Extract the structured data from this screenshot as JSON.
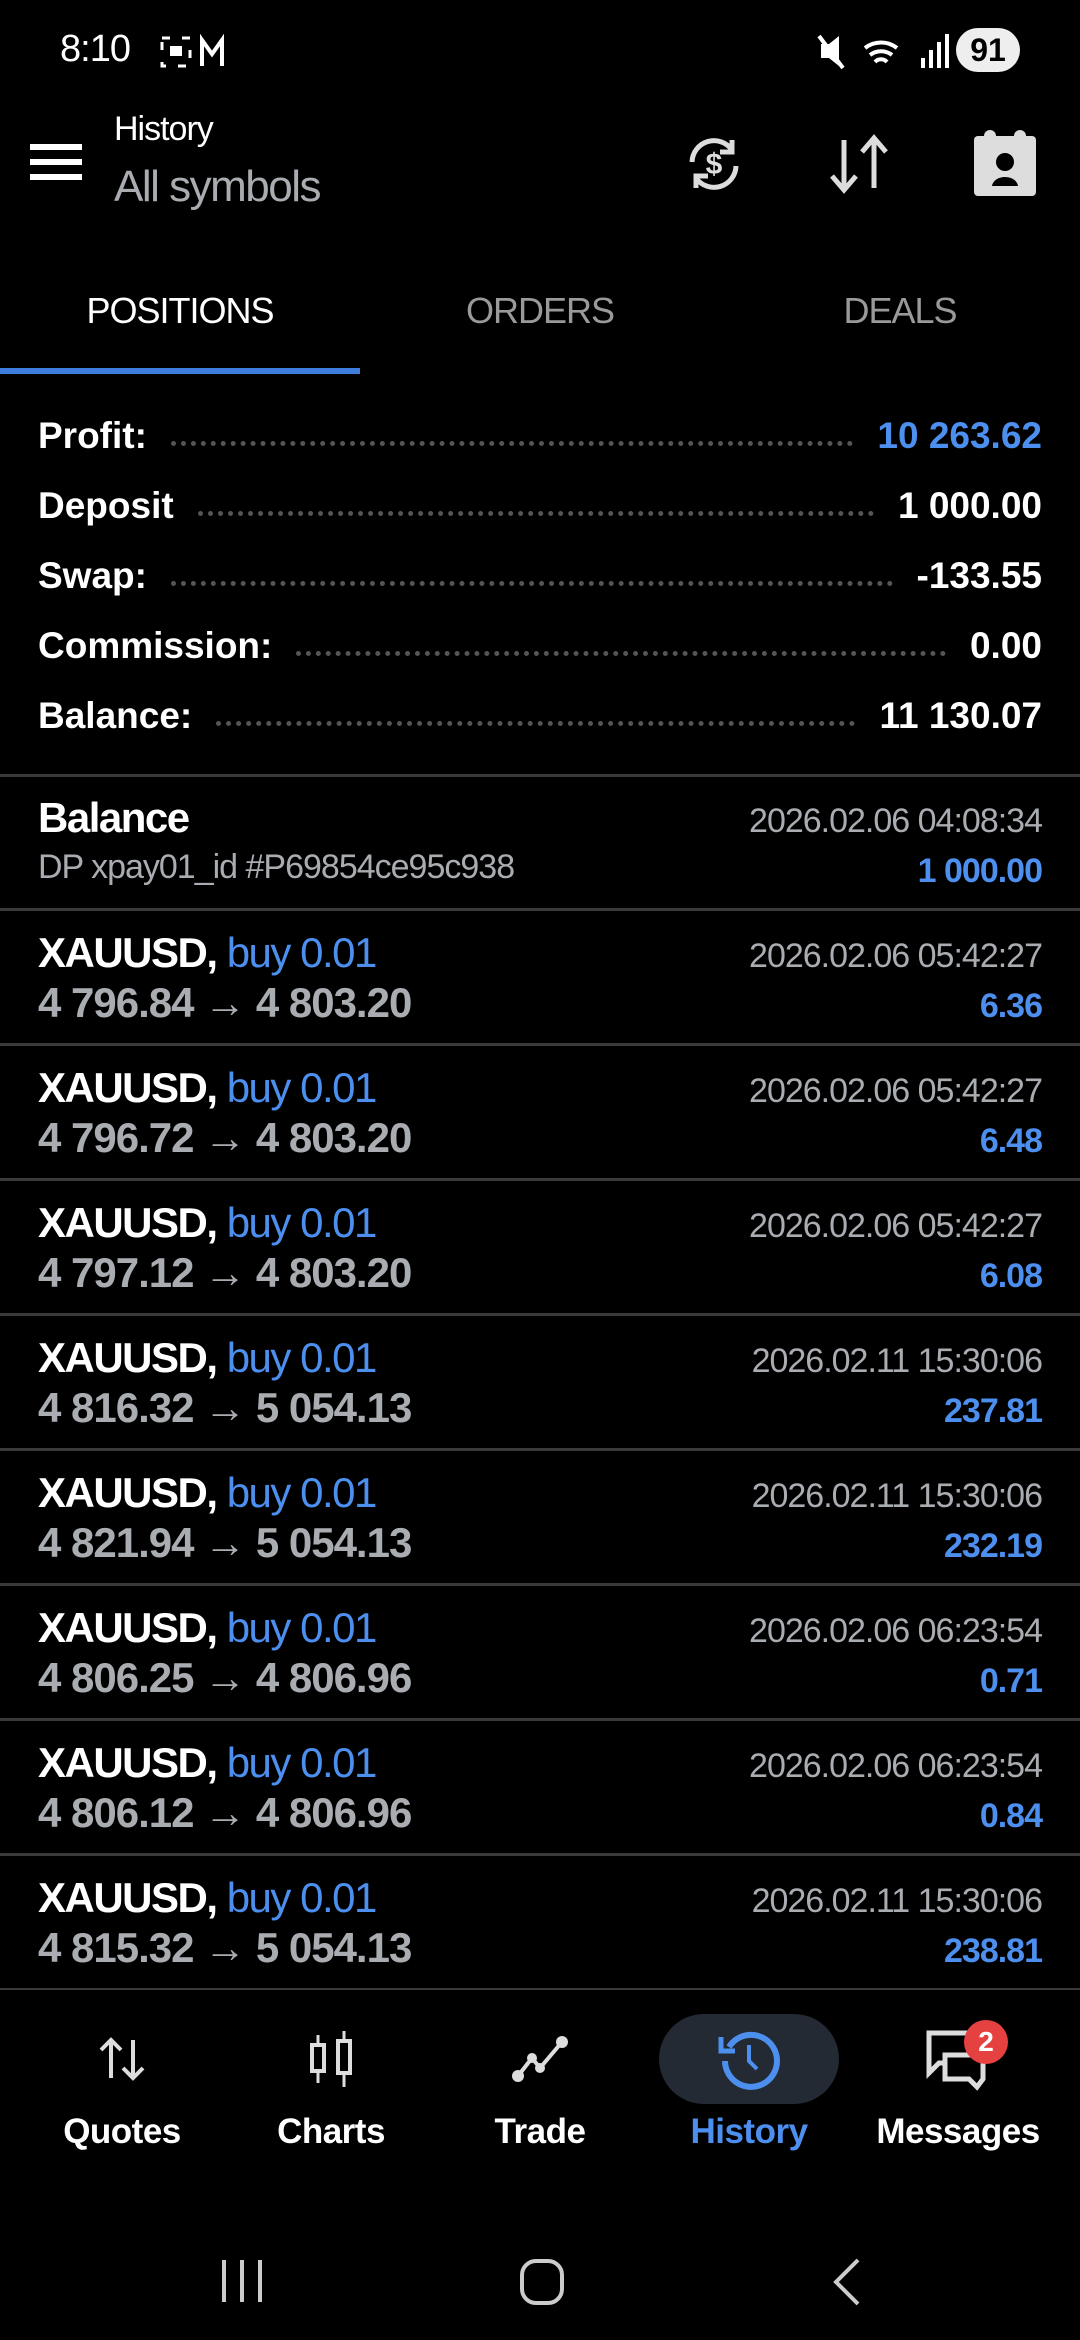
{
  "status_bar": {
    "time": "8:10",
    "battery": "91",
    "icons": [
      "screenshot-icon",
      "gmail-icon",
      "mute-icon",
      "wifi-icon",
      "signal-icon"
    ]
  },
  "header": {
    "title": "History",
    "subtitle": "All symbols",
    "actions": [
      "currency-exchange-icon",
      "sort-icon",
      "contact-card-icon"
    ]
  },
  "tabs": [
    {
      "label": "POSITIONS",
      "active": true
    },
    {
      "label": "ORDERS"
    },
    {
      "label": "DEALS"
    }
  ],
  "summary": [
    {
      "label": "Profit:",
      "value": "10 263.62",
      "highlight": true
    },
    {
      "label": "Deposit",
      "value": "1 000.00"
    },
    {
      "label": "Swap:",
      "value": "-133.55"
    },
    {
      "label": "Commission:",
      "value": "0.00"
    },
    {
      "label": "Balance:",
      "value": "11 130.07"
    }
  ],
  "balance_entry": {
    "title": "Balance",
    "comment": "DP xpay01_id #P69854ce95c938",
    "date": "2026.02.06 04:08:34",
    "amount": "1 000.00"
  },
  "positions": [
    {
      "symbol": "XAUUSD,",
      "side": "buy 0.01",
      "prices": "4 796.84 → 4 803.20",
      "date": "2026.02.06 05:42:27",
      "profit": "6.36"
    },
    {
      "symbol": "XAUUSD,",
      "side": "buy 0.01",
      "prices": "4 796.72 → 4 803.20",
      "date": "2026.02.06 05:42:27",
      "profit": "6.48"
    },
    {
      "symbol": "XAUUSD,",
      "side": "buy 0.01",
      "prices": "4 797.12 → 4 803.20",
      "date": "2026.02.06 05:42:27",
      "profit": "6.08"
    },
    {
      "symbol": "XAUUSD,",
      "side": "buy 0.01",
      "prices": "4 816.32 → 5 054.13",
      "date": "2026.02.11 15:30:06",
      "profit": "237.81"
    },
    {
      "symbol": "XAUUSD,",
      "side": "buy 0.01",
      "prices": "4 821.94 → 5 054.13",
      "date": "2026.02.11 15:30:06",
      "profit": "232.19"
    },
    {
      "symbol": "XAUUSD,",
      "side": "buy 0.01",
      "prices": "4 806.25 → 4 806.96",
      "date": "2026.02.06 06:23:54",
      "profit": "0.71"
    },
    {
      "symbol": "XAUUSD,",
      "side": "buy 0.01",
      "prices": "4 806.12 → 4 806.96",
      "date": "2026.02.06 06:23:54",
      "profit": "0.84"
    },
    {
      "symbol": "XAUUSD,",
      "side": "buy 0.01",
      "prices": "4 815.32 → 5 054.13",
      "date": "2026.02.11 15:30:06",
      "profit": "238.81"
    }
  ],
  "bottom_nav": [
    {
      "label": "Quotes",
      "icon": "quotes-icon"
    },
    {
      "label": "Charts",
      "icon": "candlestick-icon"
    },
    {
      "label": "Trade",
      "icon": "trade-line-icon"
    },
    {
      "label": "History",
      "icon": "history-icon",
      "active": true
    },
    {
      "label": "Messages",
      "icon": "messages-icon",
      "badge": "2"
    }
  ],
  "colors": {
    "accent": "#4d8fee",
    "background": "#000000",
    "badge": "#e64141"
  }
}
